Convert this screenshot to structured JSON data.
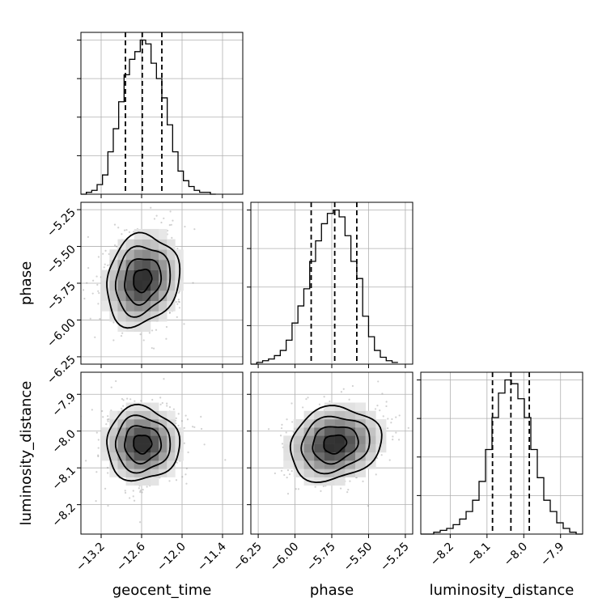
{
  "chart_data": {
    "type": "corner",
    "parameters": [
      {
        "name": "geocent_time",
        "label": "geocent_time",
        "range": [
          -13.5,
          -11.1
        ],
        "ticks": [
          -13.2,
          -12.6,
          -12.0,
          -11.4
        ],
        "tick_labels": [
          "−13.2",
          "−12.6",
          "−12.0",
          "−11.4"
        ],
        "quantiles": [
          -12.84,
          -12.59,
          -12.3
        ],
        "hist": {
          "edges": [
            -13.5,
            -13.42,
            -13.34,
            -13.26,
            -13.18,
            -13.1,
            -13.02,
            -12.94,
            -12.86,
            -12.78,
            -12.7,
            -12.62,
            -12.54,
            -12.46,
            -12.38,
            -12.3,
            -12.22,
            -12.14,
            -12.06,
            -11.98,
            -11.9,
            -11.82,
            -11.74,
            -11.66,
            -11.58,
            -11.5
          ],
          "counts": [
            0,
            1,
            2,
            5,
            10,
            22,
            34,
            48,
            62,
            70,
            74,
            80,
            78,
            68,
            60,
            50,
            36,
            22,
            12,
            7,
            4,
            2,
            1,
            1,
            0
          ]
        }
      },
      {
        "name": "phase",
        "label": "phase",
        "range": [
          -6.3,
          -5.2
        ],
        "ticks": [
          -6.25,
          -6.0,
          -5.75,
          -5.5,
          -5.25
        ],
        "tick_labels": [
          "−6.25",
          "−6.00",
          "−5.75",
          "−5.50",
          "−5.25"
        ],
        "quantiles": [
          -5.89,
          -5.73,
          -5.58
        ],
        "hist": {
          "edges": [
            -6.3,
            -6.26,
            -6.22,
            -6.18,
            -6.14,
            -6.1,
            -6.06,
            -6.02,
            -5.98,
            -5.94,
            -5.9,
            -5.86,
            -5.82,
            -5.78,
            -5.74,
            -5.7,
            -5.66,
            -5.62,
            -5.58,
            -5.54,
            -5.5,
            -5.46,
            -5.42,
            -5.38,
            -5.34,
            -5.3
          ],
          "counts": [
            0,
            1,
            2,
            3,
            5,
            8,
            14,
            24,
            34,
            44,
            60,
            72,
            82,
            88,
            90,
            86,
            75,
            60,
            50,
            28,
            16,
            8,
            4,
            2,
            1
          ]
        }
      },
      {
        "name": "luminosity_distance",
        "label": "luminosity_distance",
        "range": [
          -8.28,
          -7.84
        ],
        "ticks": [
          -8.2,
          -8.1,
          -8.0,
          -7.9
        ],
        "tick_labels": [
          "−8.2",
          "−8.1",
          "−8.0",
          "−7.9"
        ],
        "quantiles": [
          -8.085,
          -8.035,
          -7.985
        ],
        "hist": {
          "edges": [
            -8.28,
            -8.2624,
            -8.2448,
            -8.2272,
            -8.2096,
            -8.192,
            -8.1744,
            -8.1568,
            -8.1392,
            -8.1216,
            -8.104,
            -8.0864,
            -8.0688,
            -8.0512,
            -8.0336,
            -8.016,
            -7.9984,
            -7.9808,
            -7.9632,
            -7.9456,
            -7.928,
            -7.9104,
            -7.8928,
            -7.8752,
            -7.8576,
            -7.84
          ],
          "counts": [
            0,
            0,
            1,
            2,
            3,
            5,
            8,
            12,
            18,
            28,
            45,
            62,
            75,
            82,
            80,
            72,
            62,
            45,
            30,
            18,
            12,
            6,
            3,
            1,
            0
          ]
        }
      }
    ],
    "correlations": [
      {
        "x": 0,
        "y": 1,
        "rho": 0.15
      },
      {
        "x": 0,
        "y": 2,
        "rho": 0.0
      },
      {
        "x": 1,
        "y": 2,
        "rho": 0.15
      }
    ],
    "contour_levels_sigma": [
      0.5,
      1.0,
      1.5,
      2.0
    ],
    "grid": true,
    "layout": "lower-triangle 3x3"
  }
}
